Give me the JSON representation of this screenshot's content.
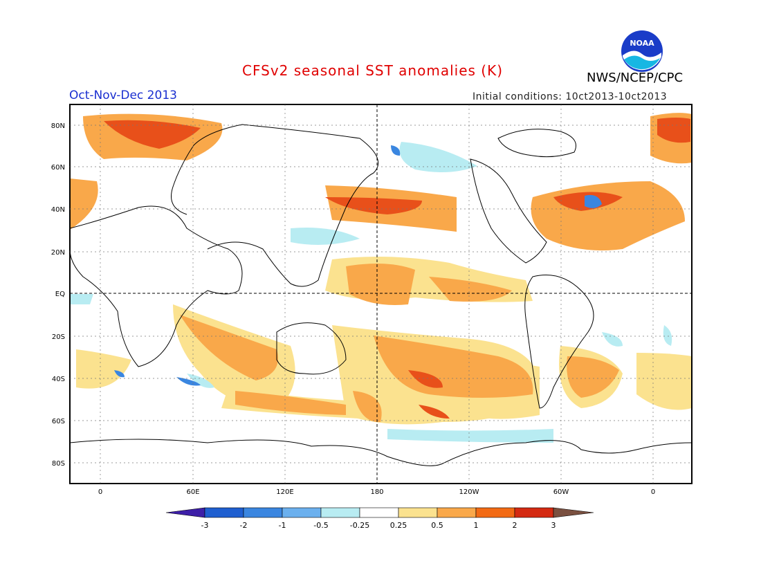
{
  "header": {
    "title": "CFSv2 seasonal SST anomalies (K)",
    "period": "Oct-Nov-Dec 2013",
    "initial_conditions": "Initial conditions: 10ct2013-10ct2013",
    "organization": "NWS/NCEP/CPC",
    "logo_text": "NOAA"
  },
  "map": {
    "lat_labels": [
      "80N",
      "60N",
      "40N",
      "20N",
      "EQ",
      "20S",
      "40S",
      "60S",
      "80S"
    ],
    "lon_labels": [
      "0",
      "60E",
      "120E",
      "180",
      "120W",
      "60W",
      "0"
    ]
  },
  "colorbar": {
    "labels": [
      "-3",
      "-2",
      "-1",
      "-0.5",
      "-0.25",
      "0.25",
      "0.5",
      "1",
      "2",
      "3"
    ],
    "colors": [
      "#3d1fa8",
      "#1f5fd0",
      "#3a86e0",
      "#6bb0ee",
      "#b8ecf2",
      "#ffffff",
      "#fbe28f",
      "#f9a84a",
      "#f26a14",
      "#d42a12",
      "#a01008",
      "#7a5040"
    ]
  }
}
